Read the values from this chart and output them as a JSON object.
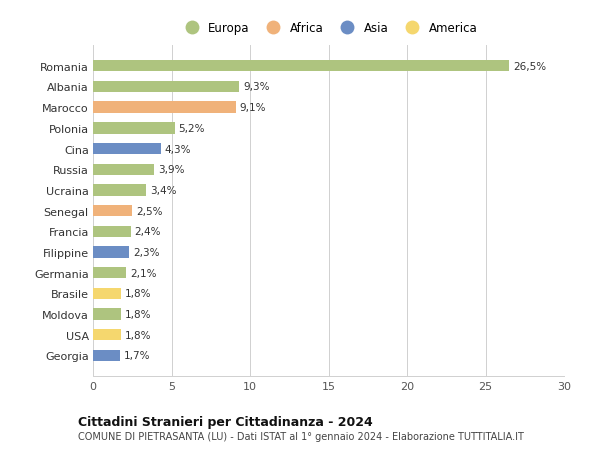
{
  "countries": [
    "Romania",
    "Albania",
    "Marocco",
    "Polonia",
    "Cina",
    "Russia",
    "Ucraina",
    "Senegal",
    "Francia",
    "Filippine",
    "Germania",
    "Brasile",
    "Moldova",
    "USA",
    "Georgia"
  ],
  "values": [
    26.5,
    9.3,
    9.1,
    5.2,
    4.3,
    3.9,
    3.4,
    2.5,
    2.4,
    2.3,
    2.1,
    1.8,
    1.8,
    1.8,
    1.7
  ],
  "labels": [
    "26,5%",
    "9,3%",
    "9,1%",
    "5,2%",
    "4,3%",
    "3,9%",
    "3,4%",
    "2,5%",
    "2,4%",
    "2,3%",
    "2,1%",
    "1,8%",
    "1,8%",
    "1,8%",
    "1,7%"
  ],
  "colors": [
    "#aec47f",
    "#aec47f",
    "#f0b27a",
    "#aec47f",
    "#6b8dc4",
    "#aec47f",
    "#aec47f",
    "#f0b27a",
    "#aec47f",
    "#6b8dc4",
    "#aec47f",
    "#f5d76e",
    "#aec47f",
    "#f5d76e",
    "#6b8dc4"
  ],
  "legend_labels": [
    "Europa",
    "Africa",
    "Asia",
    "America"
  ],
  "legend_colors": [
    "#aec47f",
    "#f0b27a",
    "#6b8dc4",
    "#f5d76e"
  ],
  "title": "Cittadini Stranieri per Cittadinanza - 2024",
  "subtitle": "COMUNE DI PIETRASANTA (LU) - Dati ISTAT al 1° gennaio 2024 - Elaborazione TUTTITALIA.IT",
  "xlim": [
    0,
    30
  ],
  "xticks": [
    0,
    5,
    10,
    15,
    20,
    25,
    30
  ],
  "bg_color": "#ffffff",
  "bar_height": 0.55,
  "grid_color": "#d0d0d0"
}
